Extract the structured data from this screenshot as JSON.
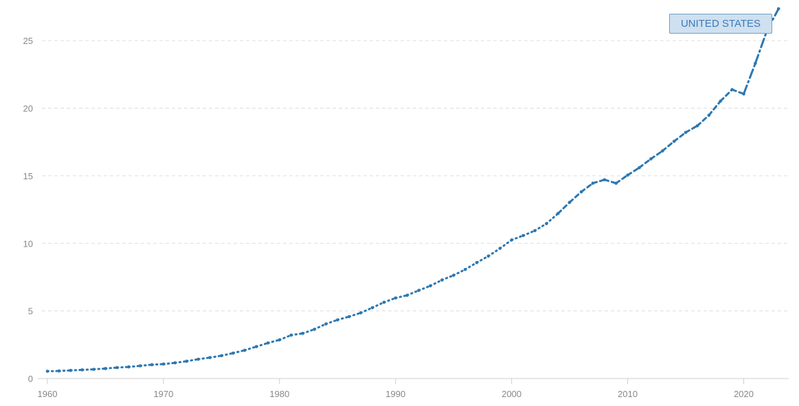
{
  "chart_data": {
    "type": "line",
    "title": "",
    "xlabel": "",
    "ylabel": "",
    "xlim": [
      1960,
      2025
    ],
    "ylim": [
      0,
      27.5
    ],
    "x_ticks": [
      1960,
      1970,
      1980,
      1990,
      2000,
      2010,
      2020
    ],
    "y_ticks": [
      0,
      5,
      10,
      15,
      20,
      25
    ],
    "grid": "horizontal dashed",
    "legend": "top-right",
    "colors": {
      "series": "#2c77b1",
      "grid": "#dddddd",
      "tick_text": "#888888",
      "label_bg": "#cfe0f0"
    },
    "series": [
      {
        "name": "UNITED STATES",
        "x": [
          1960,
          1961,
          1962,
          1963,
          1964,
          1965,
          1966,
          1967,
          1968,
          1969,
          1970,
          1971,
          1972,
          1973,
          1974,
          1975,
          1976,
          1977,
          1978,
          1979,
          1980,
          1981,
          1982,
          1983,
          1984,
          1985,
          1986,
          1987,
          1988,
          1989,
          1990,
          1991,
          1992,
          1993,
          1994,
          1995,
          1996,
          1997,
          1998,
          1999,
          2000,
          2001,
          2002,
          2003,
          2004,
          2005,
          2006,
          2007,
          2008,
          2009,
          2010,
          2011,
          2012,
          2013,
          2014,
          2015,
          2016,
          2017,
          2018,
          2019,
          2020,
          2021,
          2022,
          2023
        ],
        "values": [
          0.54,
          0.56,
          0.6,
          0.64,
          0.68,
          0.74,
          0.81,
          0.86,
          0.94,
          1.02,
          1.07,
          1.16,
          1.28,
          1.43,
          1.55,
          1.69,
          1.88,
          2.09,
          2.36,
          2.63,
          2.86,
          3.21,
          3.34,
          3.64,
          4.04,
          4.34,
          4.58,
          4.86,
          5.24,
          5.64,
          5.96,
          6.16,
          6.52,
          6.86,
          7.29,
          7.64,
          8.07,
          8.58,
          9.06,
          9.63,
          10.25,
          10.58,
          10.94,
          11.46,
          12.21,
          13.04,
          13.81,
          14.45,
          14.71,
          14.45,
          15.05,
          15.6,
          16.25,
          16.84,
          17.55,
          18.21,
          18.7,
          19.48,
          20.53,
          21.38,
          21.06,
          23.32,
          25.74,
          27.36
        ]
      }
    ]
  }
}
